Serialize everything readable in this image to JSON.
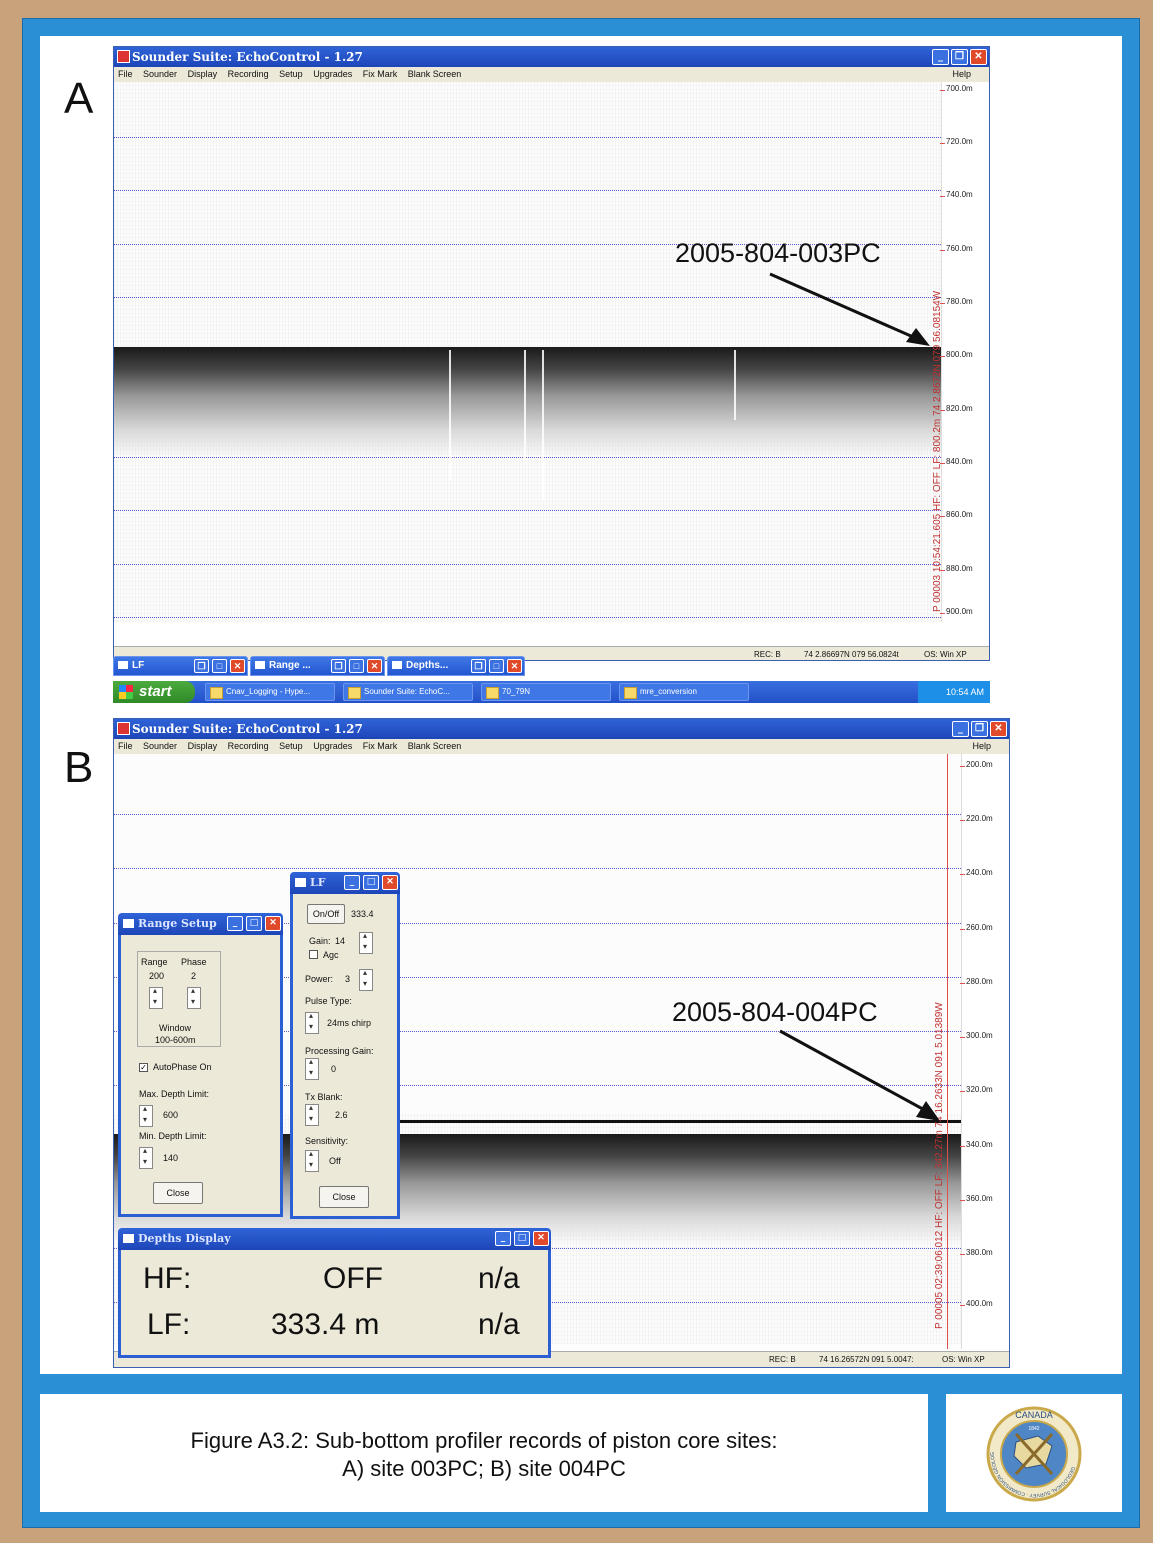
{
  "panel_a": {
    "letter": "A",
    "window_title": "Sounder Suite: EchoControl - 1.27",
    "menu": [
      "File",
      "Sounder",
      "Display",
      "Recording",
      "Setup",
      "Upgrades",
      "Fix Mark",
      "Blank Screen"
    ],
    "help": "Help",
    "depth_ticks": [
      "700.0m",
      "720.0m",
      "740.0m",
      "760.0m",
      "780.0m",
      "800.0m",
      "820.0m",
      "840.0m",
      "860.0m",
      "880.0m",
      "900.0m"
    ],
    "vertical_readout": "P 00003  10:54:21.605  HF: OFF  LF: 800.2m  74  2.8672N  079  56.08154W",
    "annotation": "2005-804-003PC",
    "mini_windows": [
      "LF",
      "Range ...",
      "Depths..."
    ],
    "status": {
      "rec": "REC: B",
      "pos": "74  2.86697N  079 56.0824t",
      "os": "OS: Win XP"
    },
    "taskbar": {
      "start": "start",
      "tasks": [
        "Cnav_Logging - Hype...",
        "Sounder Suite: EchoC...",
        "70_79N",
        "mre_conversion"
      ],
      "clock": "10:54 AM"
    }
  },
  "panel_b": {
    "letter": "B",
    "window_title": "Sounder Suite: EchoControl - 1.27",
    "menu": [
      "File",
      "Sounder",
      "Display",
      "Recording",
      "Setup",
      "Upgrades",
      "Fix Mark",
      "Blank Screen"
    ],
    "help": "Help",
    "depth_ticks": [
      "200.0m",
      "220.0m",
      "240.0m",
      "260.0m",
      "280.0m",
      "300.0m",
      "320.0m",
      "340.0m",
      "360.0m",
      "380.0m",
      "400.0m"
    ],
    "vertical_readout": "P 00005  02:39:06.012  HF: OFF  LF: 342.27m  74 16.2633N  091  5.01389W",
    "annotation": "2005-804-004PC",
    "range_setup": {
      "title": "Range Setup",
      "range_label": "Range",
      "range_value": "200",
      "phase_label": "Phase",
      "phase_value": "2",
      "window_label": "Window",
      "window_value": "100-600m",
      "autophase": "AutoPhase On",
      "max_label": "Max. Depth Limit:",
      "max_value": "600",
      "min_label": "Min. Depth Limit:",
      "min_value": "140",
      "close": "Close"
    },
    "lf": {
      "title": "LF",
      "onoff": "On/Off",
      "freq": "333.4",
      "gain_label": "Gain:",
      "gain_value": "14",
      "agc": "Agc",
      "power_label": "Power:",
      "power_value": "3",
      "pulse_label": "Pulse Type:",
      "pulse_value": "24ms chirp",
      "proc_label": "Processing Gain:",
      "proc_value": "0",
      "tx_label": "Tx Blank:",
      "tx_value": "2.6",
      "sens_label": "Sensitivity:",
      "sens_value": "Off",
      "close": "Close"
    },
    "depths_display": {
      "title": "Depths Display",
      "hf_label": "HF:",
      "hf_value": "OFF",
      "hf_extra": "n/a",
      "lf_label": "LF:",
      "lf_value": "333.4 m",
      "lf_extra": "n/a"
    },
    "status": {
      "rec": "REC: B",
      "pos": "74 16.26572N  091  5.0047:",
      "os": "OS: Win XP"
    }
  },
  "caption": {
    "line1": "Figure A3.2: Sub-bottom profiler records of piston core sites:",
    "line2": "A) site 003PC; B) site 004PC"
  },
  "logo": {
    "top": "CANADA",
    "ring": "GEOLOGICAL SURVEY · COMMISSION GÉOLOGIQUE",
    "year": "1842"
  },
  "colors": {
    "frame": "#2b8fd6",
    "border": "#c8a27a",
    "titlebar": "#2f63d8"
  }
}
